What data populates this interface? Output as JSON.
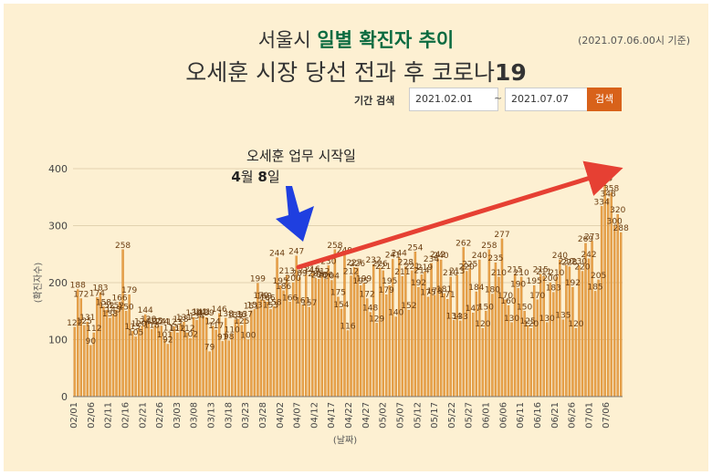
{
  "title_line1_a": "서울시 ",
  "title_line1_b": "일별 확진자 추이",
  "title_line2_a": "오세훈 시장 당선 전과 후 코로나",
  "title_line2_b": "19",
  "date_note": "(2021.07.06.00시 기준)",
  "search": {
    "label": "기간 검색",
    "start": "2021.02.01",
    "sep": "~",
    "end": "2021.07.07",
    "button": "검색"
  },
  "annotation": {
    "line1": "오세훈 업무 시작일",
    "line2_num1": "4",
    "line2_t1": "월 ",
    "line2_num2": "8",
    "line2_t2": "일"
  },
  "colors": {
    "bar": "#e8a24a",
    "bar_edge": "#c97a22",
    "arrow_red": "#e64033",
    "arrow_blue": "#1f3fe0"
  },
  "chart_data": {
    "type": "bar",
    "xlabel": "(날짜)",
    "ylabel": "(확진자수)",
    "ylim": [
      0,
      400
    ],
    "yticks": [
      0,
      100,
      200,
      300,
      400
    ],
    "xticks": [
      "02/01",
      "02/06",
      "02/11",
      "02/16",
      "02/21",
      "02/26",
      "03/03",
      "03/08",
      "03/13",
      "03/18",
      "03/23",
      "03/28",
      "04/02",
      "04/07",
      "04/12",
      "04/17",
      "04/22",
      "04/27",
      "05/02",
      "05/07",
      "05/12",
      "05/17",
      "05/22",
      "05/27",
      "06/01",
      "06/06",
      "06/11",
      "06/16",
      "06/21",
      "06/26",
      "07/01",
      "07/06"
    ],
    "values": [
      122,
      188,
      172,
      125,
      131,
      90,
      112,
      174,
      183,
      158,
      152,
      138,
      145,
      152,
      166,
      258,
      150,
      179,
      115,
      105,
      120,
      124,
      144,
      128,
      118,
      125,
      124,
      124,
      101,
      92,
      113,
      123,
      112,
      128,
      131,
      112,
      102,
      139,
      134,
      141,
      141,
      139,
      79,
      124,
      117,
      146,
      97,
      138,
      98,
      110,
      135,
      136,
      125,
      137,
      100,
      151,
      153,
      199,
      170,
      169,
      166,
      153,
      158,
      244,
      195,
      186,
      213,
      166,
      200,
      247,
      209,
      161,
      214,
      157,
      216,
      208,
      206,
      212,
      206,
      230,
      204,
      258,
      175,
      154,
      249,
      116,
      212,
      227,
      226,
      195,
      199,
      172,
      148,
      232,
      129,
      226,
      221,
      179,
      195,
      241,
      140,
      244,
      211,
      228,
      152,
      221,
      254,
      192,
      214,
      219,
      175,
      234,
      178,
      242,
      240,
      181,
      171,
      210,
      134,
      213,
      133,
      262,
      220,
      225,
      147,
      184,
      240,
      120,
      150,
      258,
      180,
      235,
      210,
      277,
      170,
      160,
      130,
      215,
      190,
      210,
      150,
      125,
      120,
      195,
      170,
      215,
      211,
      130,
      200,
      183,
      210,
      240,
      135,
      230,
      228,
      192,
      120,
      230,
      220,
      269,
      242,
      273,
      185,
      205,
      334,
      375,
      348,
      358,
      300,
      320,
      288
    ]
  }
}
